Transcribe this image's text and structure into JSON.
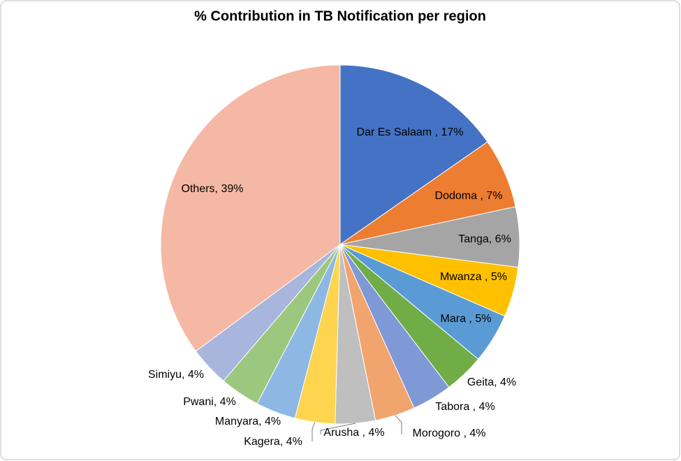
{
  "chart_data": {
    "type": "pie",
    "title": "% Contribution in TB Notification per region",
    "values": [
      17,
      7,
      6,
      5,
      5,
      4,
      4,
      4,
      4,
      4,
      4,
      4,
      4,
      39
    ],
    "value_labels": [
      "Dar Es Salaam , 17%",
      "Dodoma , 7%",
      "Tanga, 6%",
      "Mwanza , 5%",
      "Mara , 5%",
      "Geita, 4%",
      "Tabora , 4%",
      "Morogoro , 4%",
      "Arusha , 4%",
      "Kagera, 4%",
      "Manyara, 4%",
      "Pwani, 4%",
      "Simiyu, 4%",
      "Others, 39%"
    ],
    "colors": [
      "#4472c4",
      "#ed7d31",
      "#a5a5a5",
      "#ffc000",
      "#5b9bd5",
      "#70ad47",
      "#7f98d6",
      "#f1a46d",
      "#bfbfbf",
      "#ffd44f",
      "#8cb8e3",
      "#9cc77f",
      "#a8b5dc",
      "#f4b8a4"
    ]
  }
}
